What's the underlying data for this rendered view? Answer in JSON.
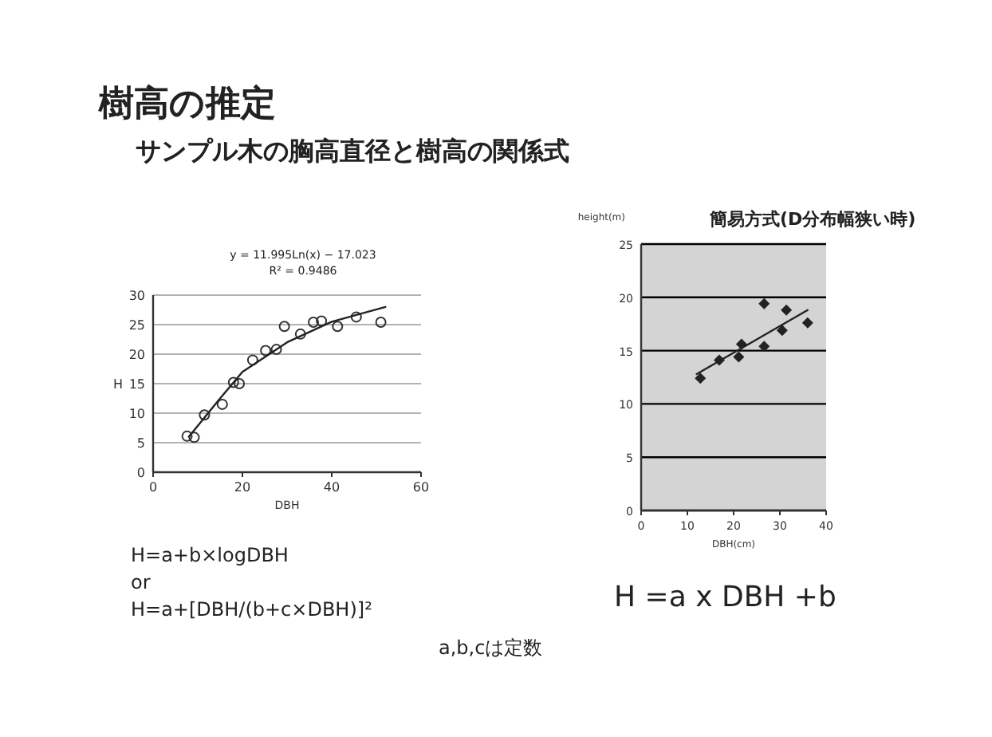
{
  "chart_data": [
    {
      "type": "scatter",
      "title": "樹高の推定",
      "subtitle": "サンプル木の胸高直径と樹高の関係式",
      "xlabel": "DBH",
      "ylabel": "H",
      "xlim": [
        0,
        60
      ],
      "ylim": [
        0,
        30
      ],
      "xticks": [
        0,
        20,
        40,
        60
      ],
      "yticks": [
        0,
        5,
        10,
        15,
        20,
        25,
        30
      ],
      "grid": "y",
      "series": [
        {
          "type": "scatter",
          "marker": "circle",
          "color": "#333333",
          "x": [
            7.6,
            9.2,
            11.5,
            15.5,
            18,
            19.3,
            22.3,
            25.2,
            27.6,
            29.4,
            33,
            35.9,
            37.7,
            41.3,
            45.5,
            51
          ],
          "values": [
            6.1,
            5.9,
            9.7,
            11.5,
            15.2,
            15,
            19,
            20.6,
            20.8,
            24.7,
            23.4,
            25.4,
            25.6,
            24.7,
            26.3,
            25.4
          ]
        },
        {
          "type": "line",
          "color": "#222222",
          "x": [
            8,
            15,
            20,
            30,
            40,
            52
          ],
          "values": [
            6,
            12.5,
            17,
            22,
            25.5,
            28
          ]
        }
      ],
      "annotations": [
        "y = 11.995Ln(x) − 17.023",
        "R² = 0.9486",
        "H=a+b×logDBH",
        "or",
        "H=a+[DBH/(b+c×DBH)]²",
        "a,b,cは定数"
      ]
    },
    {
      "type": "scatter",
      "title": "簡易方式(D分布幅狭い時)",
      "xlabel": "DBH(cm)",
      "ylabel": "height(m)",
      "xlim": [
        0,
        40
      ],
      "ylim": [
        0,
        25
      ],
      "xticks": [
        0,
        10,
        20,
        30,
        40
      ],
      "yticks": [
        0,
        5,
        10,
        15,
        20,
        25
      ],
      "grid": "y",
      "series": [
        {
          "type": "scatter",
          "marker": "diamond",
          "color": "#222222",
          "x": [
            12.8,
            16.9,
            21.1,
            21.7,
            26.6,
            26.6,
            30.5,
            31.4,
            36
          ],
          "values": [
            12.4,
            14.1,
            14.4,
            15.6,
            15.4,
            19.4,
            16.9,
            18.8,
            17.6
          ]
        },
        {
          "type": "line",
          "color": "#222222",
          "x": [
            12,
            36
          ],
          "values": [
            12.8,
            18.8
          ]
        }
      ],
      "annotations": [
        "H =a x DBH +b"
      ]
    }
  ]
}
